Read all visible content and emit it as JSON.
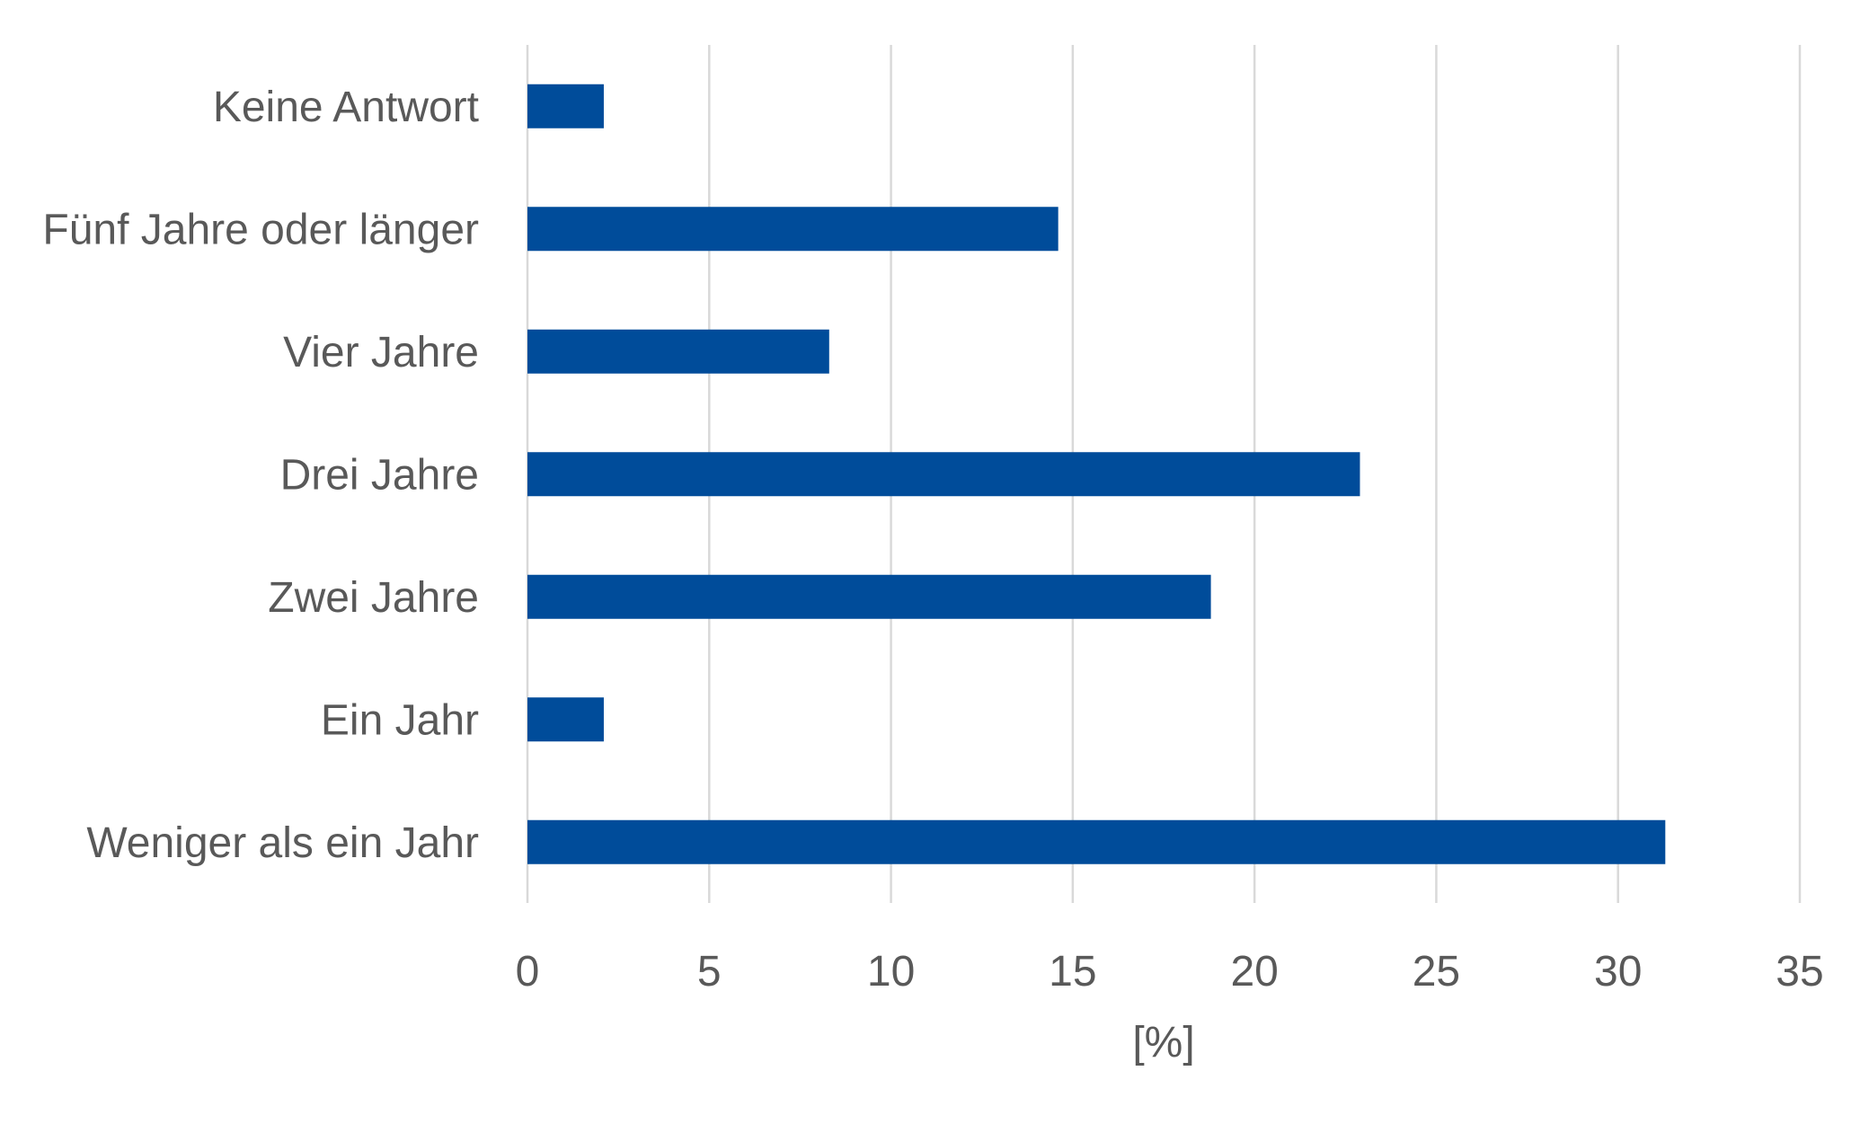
{
  "chart_data": {
    "type": "bar",
    "orientation": "horizontal",
    "categories": [
      "Keine Antwort",
      "Fünf Jahre oder länger",
      "Vier Jahre",
      "Drei Jahre",
      "Zwei Jahre",
      "Ein Jahr",
      "Weniger als ein Jahr"
    ],
    "values": [
      2.1,
      14.6,
      8.3,
      22.9,
      18.8,
      2.1,
      31.3
    ],
    "xlabel": "[%]",
    "ylabel": "",
    "xlim": [
      0,
      35
    ],
    "xticks": [
      "0",
      "5",
      "10",
      "15",
      "20",
      "25",
      "30",
      "35"
    ],
    "grid": "vertical",
    "legend": "none",
    "colors": {
      "bar": "#004C9A",
      "grid": "#D9D9D9",
      "text": "#595959"
    }
  }
}
